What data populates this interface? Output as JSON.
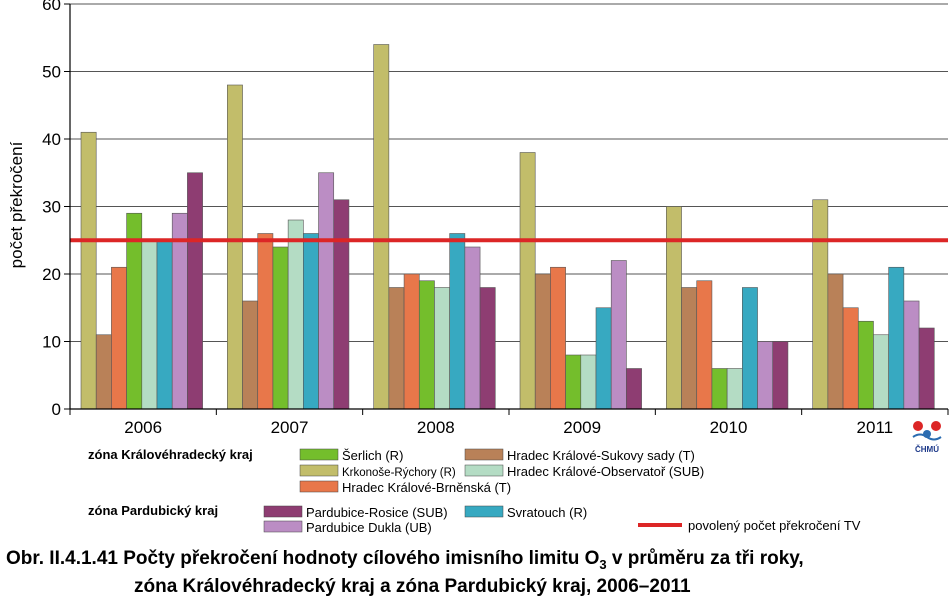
{
  "chart_data": {
    "type": "bar",
    "categories": [
      "2006",
      "2007",
      "2008",
      "2009",
      "2010",
      "2011"
    ],
    "ylabel": "počet překročení",
    "ylim": [
      0,
      60
    ],
    "yticks": [
      0,
      10,
      20,
      30,
      40,
      50,
      60
    ],
    "grid": true,
    "series": [
      {
        "name": "Krkonoše-Rýchory (R)",
        "color": "#c2bd6a",
        "values": [
          41,
          48,
          54,
          38,
          30,
          31
        ]
      },
      {
        "name": "Hradec Králové-Sukovy sady (T)",
        "color": "#b98158",
        "values": [
          11,
          16,
          18,
          20,
          18,
          20
        ]
      },
      {
        "name": "Hradec Králové-Brněnská (T)",
        "color": "#e8774a",
        "values": [
          21,
          26,
          20,
          21,
          19,
          15
        ]
      },
      {
        "name": "Šerlich (R)",
        "color": "#74be2c",
        "values": [
          29,
          24,
          19,
          8,
          6,
          13
        ]
      },
      {
        "name": "Hradec Králové-Observatoř (SUB)",
        "color": "#b4dcc4",
        "values": [
          25,
          28,
          18,
          8,
          6,
          11
        ]
      },
      {
        "name": "Svratouch (R)",
        "color": "#37a9c1",
        "values": [
          25,
          26,
          26,
          15,
          18,
          21
        ]
      },
      {
        "name": "Pardubice Dukla (UB)",
        "color": "#bb8dc4",
        "values": [
          29,
          35,
          24,
          22,
          10,
          16
        ]
      },
      {
        "name": "Pardubice-Rosice (SUB)",
        "color": "#8e3d72",
        "values": [
          35,
          31,
          18,
          6,
          10,
          12
        ]
      }
    ],
    "threshold": {
      "name": "povolený počet překročení TV",
      "value": 25,
      "color": "#dc2626"
    }
  },
  "legend": {
    "group1_label": "zóna Královéhradecký kraj",
    "group2_label": "zóna Pardubický kraj"
  },
  "logo": {
    "text": "ČHMÚ"
  },
  "caption": {
    "line1": "Obr. II.4.1.41  Počty překročení hodnoty cílového imisního limitu O",
    "subscript": "3",
    "line1_end": " v průměru za tři roky,",
    "line2": "zóna Královéhradecký kraj a zóna Pardubický kraj, 2006–2011"
  }
}
